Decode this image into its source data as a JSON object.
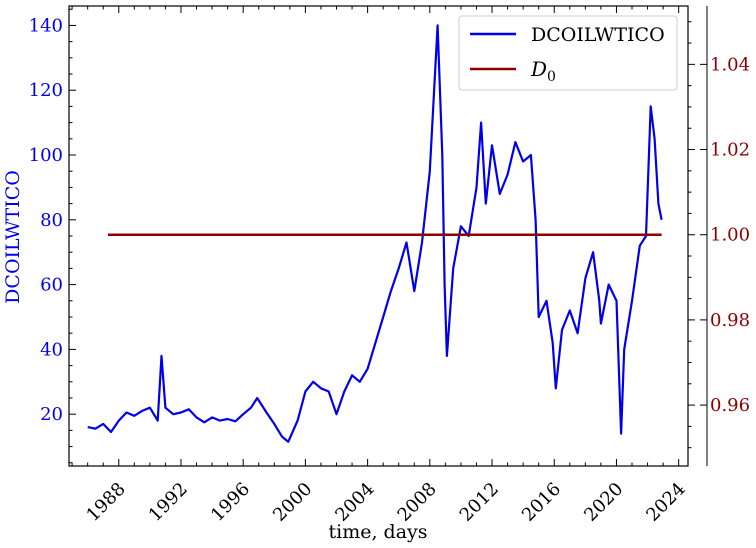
{
  "chart_data": {
    "type": "line",
    "title": "",
    "xlabel": "time, days",
    "ylabel_left": "DCOILWTICO",
    "ylabel_right": "",
    "xlim": [
      1984.8,
      2024.6
    ],
    "ylim_left": [
      4,
      146
    ],
    "ylim_right": [
      0.9457,
      1.0537
    ],
    "x_ticks": [
      1988,
      1992,
      1996,
      2000,
      2004,
      2008,
      2012,
      2016,
      2020,
      2024
    ],
    "x_tick_labels": [
      "1988",
      "1992",
      "1996",
      "2000",
      "2004",
      "2008",
      "2012",
      "2016",
      "2020",
      "2024"
    ],
    "y_left_ticks": [
      20,
      40,
      60,
      80,
      100,
      120,
      140
    ],
    "y_left_tick_labels": [
      "20",
      "40",
      "60",
      "80",
      "100",
      "120",
      "140"
    ],
    "y_right_ticks": [
      0.96,
      0.98,
      1.0,
      1.02,
      1.04
    ],
    "y_right_tick_labels": [
      "0.96",
      "0.98",
      "1.00",
      "1.02",
      "1.04"
    ],
    "grid": false,
    "legend_position": "top-right",
    "series": [
      {
        "name": "DCOILWTICO",
        "axis": "left",
        "color": "#0000ee",
        "x": [
          1986.0,
          1986.5,
          1987.0,
          1987.5,
          1988.0,
          1988.5,
          1989.0,
          1989.5,
          1990.0,
          1990.5,
          1990.75,
          1991.0,
          1991.5,
          1992.0,
          1992.5,
          1993.0,
          1993.5,
          1994.0,
          1994.5,
          1995.0,
          1995.5,
          1996.0,
          1996.5,
          1996.9,
          1997.5,
          1998.0,
          1998.5,
          1998.9,
          1999.5,
          2000.0,
          2000.5,
          2001.0,
          2001.5,
          2002.0,
          2002.5,
          2003.0,
          2003.5,
          2004.0,
          2004.5,
          2005.0,
          2005.5,
          2006.0,
          2006.5,
          2007.0,
          2007.5,
          2008.0,
          2008.5,
          2008.8,
          2008.95,
          2009.1,
          2009.5,
          2010.0,
          2010.5,
          2011.0,
          2011.3,
          2011.6,
          2012.0,
          2012.5,
          2013.0,
          2013.5,
          2014.0,
          2014.5,
          2014.8,
          2015.0,
          2015.5,
          2015.9,
          2016.1,
          2016.5,
          2017.0,
          2017.5,
          2018.0,
          2018.5,
          2018.9,
          2019.0,
          2019.5,
          2020.0,
          2020.3,
          2020.5,
          2021.0,
          2021.5,
          2021.9,
          2022.2,
          2022.45,
          2022.7,
          2022.9
        ],
        "values": [
          16.0,
          15.5,
          17.0,
          14.5,
          18.0,
          20.5,
          19.5,
          21.0,
          22.0,
          18.0,
          38.0,
          22.0,
          20.0,
          20.5,
          21.5,
          19.0,
          17.5,
          19.0,
          18.0,
          18.5,
          17.8,
          20.0,
          22.0,
          25.0,
          20.5,
          17.0,
          13.0,
          11.5,
          18.0,
          27.0,
          30.0,
          28.0,
          27.0,
          20.0,
          27.0,
          32.0,
          30.0,
          34.0,
          42.0,
          50.0,
          58.0,
          65.0,
          73.0,
          58.0,
          73.0,
          95.0,
          140.0,
          100.0,
          60.0,
          38.0,
          65.0,
          78.0,
          75.0,
          90.0,
          110.0,
          85.0,
          103.0,
          88.0,
          94.0,
          104.0,
          98.0,
          100.0,
          80.0,
          50.0,
          55.0,
          42.0,
          28.0,
          46.0,
          52.0,
          45.0,
          62.0,
          70.0,
          55.0,
          48.0,
          60.0,
          55.0,
          14.0,
          40.0,
          55.0,
          72.0,
          75.0,
          115.0,
          105.0,
          85.0,
          80.0
        ]
      },
      {
        "name": "D_0",
        "axis": "right",
        "color": "#8b0000",
        "x": [
          1987.3,
          2022.9
        ],
        "values": [
          1.0,
          1.0
        ]
      }
    ]
  },
  "legend": {
    "items": [
      {
        "label": "DCOILWTICO",
        "color": "#0000ee"
      },
      {
        "label": "D",
        "sub": "0",
        "color": "#8b0000"
      }
    ]
  },
  "colors": {
    "left_axis": "#0000ee",
    "right_axis": "#8b0000"
  }
}
